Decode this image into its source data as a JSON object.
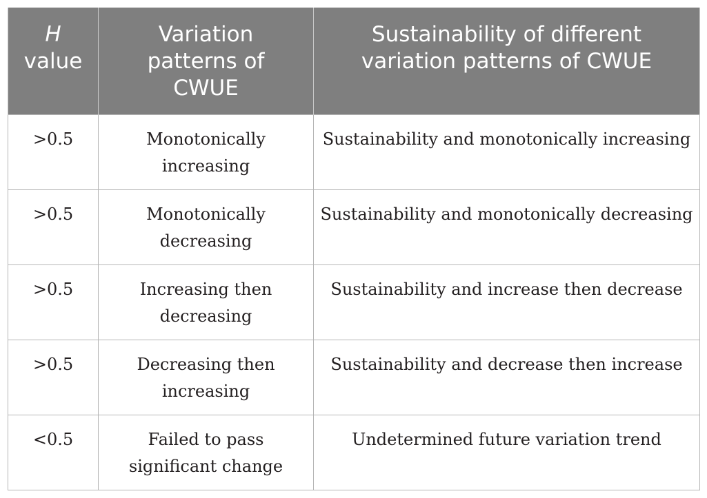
{
  "table": {
    "headers": {
      "col1_italic": "H",
      "col1_rest": "value",
      "col2_line1": "Variation",
      "col2_line2": "patterns of",
      "col2_line3": "CWUE",
      "col3_line1": "Sustainability of different",
      "col3_line2": "variation patterns of CWUE"
    },
    "rows": [
      {
        "h_value": ">0.5",
        "pattern_line1": "Monotonically",
        "pattern_line2": "increasing",
        "sustainability": "Sustainability and monotonically increasing"
      },
      {
        "h_value": ">0.5",
        "pattern_line1": "Monotonically",
        "pattern_line2": "decreasing",
        "sustainability": "Sustainability and monotonically decreasing"
      },
      {
        "h_value": ">0.5",
        "pattern_line1": "Increasing then",
        "pattern_line2": "decreasing",
        "sustainability": "Sustainability and increase then decrease"
      },
      {
        "h_value": ">0.5",
        "pattern_line1": "Decreasing then",
        "pattern_line2": "increasing",
        "sustainability": "Sustainability and decrease then increase"
      },
      {
        "h_value": "<0.5",
        "pattern_line1": "Failed to pass",
        "pattern_line2": "significant change",
        "sustainability": "Undetermined future variation trend"
      }
    ]
  }
}
